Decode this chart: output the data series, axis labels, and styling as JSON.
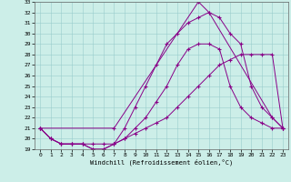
{
  "xlabel": "Windchill (Refroidissement éolien,°C)",
  "bg_color": "#cceee8",
  "line_color": "#880088",
  "xlim": [
    -0.5,
    23.5
  ],
  "ylim": [
    19,
    33
  ],
  "xticks": [
    0,
    1,
    2,
    3,
    4,
    5,
    6,
    7,
    8,
    9,
    10,
    11,
    12,
    13,
    14,
    15,
    16,
    17,
    18,
    19,
    20,
    21,
    22,
    23
  ],
  "yticks": [
    19,
    20,
    21,
    22,
    23,
    24,
    25,
    26,
    27,
    28,
    29,
    30,
    31,
    32,
    33
  ],
  "series": [
    {
      "x": [
        0,
        1,
        2,
        3,
        4,
        5,
        6,
        7,
        8,
        9,
        10,
        11,
        12,
        13,
        14,
        15,
        16,
        17,
        18,
        19,
        20,
        21,
        22,
        23
      ],
      "y": [
        21,
        20,
        19.5,
        19.5,
        19.5,
        19.5,
        19.5,
        19.5,
        20,
        20.5,
        21,
        21.5,
        22,
        23,
        24,
        25,
        26,
        27,
        27.5,
        28,
        28,
        28,
        28,
        21
      ]
    },
    {
      "x": [
        0,
        1,
        2,
        3,
        4,
        5,
        6,
        7,
        8,
        9,
        10,
        11,
        12,
        13,
        14,
        15,
        16,
        17,
        18,
        19,
        20,
        21,
        22,
        23
      ],
      "y": [
        21,
        20,
        19.5,
        19.5,
        19.5,
        19,
        19,
        19.5,
        20,
        21,
        22,
        23.5,
        25,
        27,
        28.5,
        29,
        29,
        28.5,
        25,
        23,
        22,
        21.5,
        21,
        21
      ]
    },
    {
      "x": [
        0,
        1,
        2,
        3,
        4,
        5,
        6,
        7,
        8,
        9,
        10,
        11,
        12,
        13,
        14,
        15,
        16,
        17,
        18,
        19,
        20,
        21,
        22,
        23
      ],
      "y": [
        21,
        20,
        19.5,
        19.5,
        19.5,
        19,
        19,
        19.5,
        21,
        23,
        25,
        27,
        29,
        30,
        31,
        31.5,
        32,
        31.5,
        30,
        29,
        25,
        23,
        22,
        21
      ]
    },
    {
      "x": [
        0,
        7,
        15,
        16,
        22,
        23
      ],
      "y": [
        21,
        21,
        33,
        32,
        22,
        21
      ]
    }
  ]
}
